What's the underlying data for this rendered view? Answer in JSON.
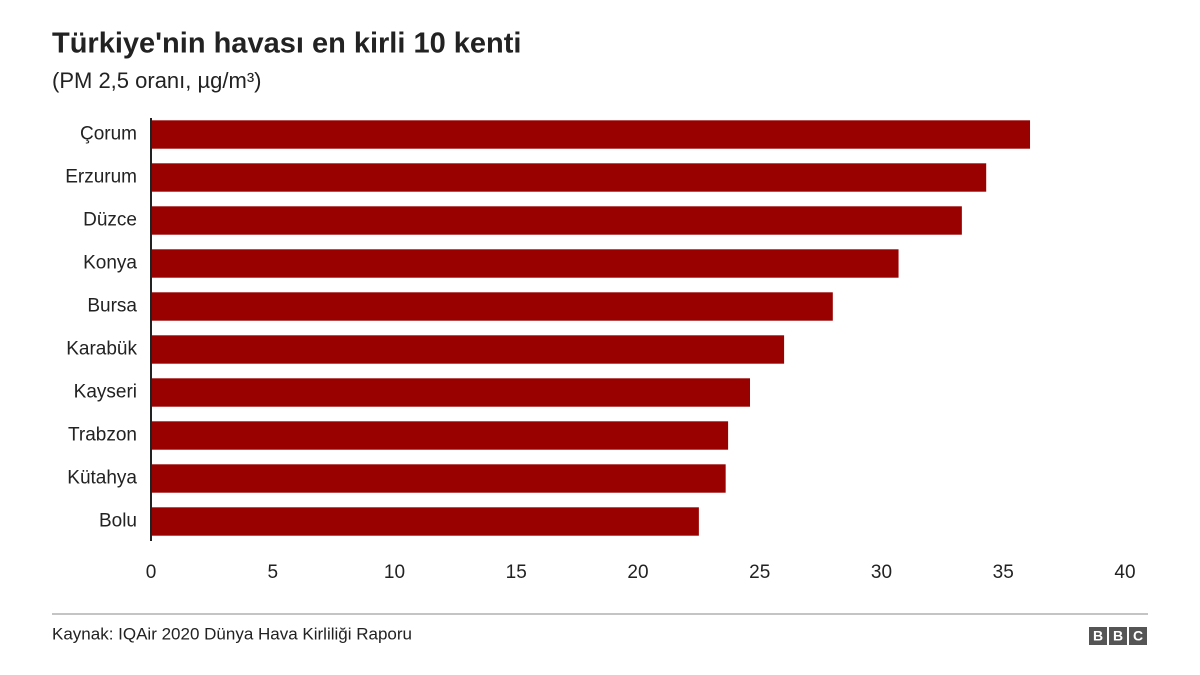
{
  "chart_data": {
    "type": "bar",
    "orientation": "horizontal",
    "title": "Türkiye'nin havası en kirli 10 kenti",
    "subtitle": "(PM 2,5 oranı, µg/m³)",
    "categories": [
      "Çorum",
      "Erzurum",
      "Düzce",
      "Konya",
      "Bursa",
      "Karabük",
      "Kayseri",
      "Trabzon",
      "Kütahya",
      "Bolu"
    ],
    "values": [
      36.1,
      34.3,
      33.3,
      30.7,
      28.0,
      26.0,
      24.6,
      23.7,
      23.6,
      22.5
    ],
    "color": "#990000",
    "xlim": [
      0,
      40
    ],
    "xticks": [
      0,
      5,
      10,
      15,
      20,
      25,
      30,
      35,
      40
    ],
    "grid": false
  },
  "footer": {
    "source": "Kaynak: IQAir 2020 Dünya Hava Kirliliği Raporu",
    "logo": [
      "B",
      "B",
      "C"
    ]
  }
}
